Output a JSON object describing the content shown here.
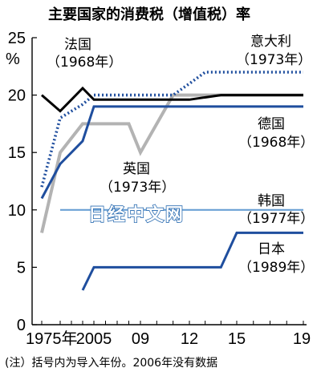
{
  "watermark": "日经中文网",
  "chart_data": {
    "type": "line",
    "title": "主要国家的消费税（增值税）率",
    "ylabel": "%",
    "ylim": [
      0,
      25
    ],
    "yticks": [
      "0",
      "5",
      "10",
      "15",
      "20",
      "25"
    ],
    "x_tick_labels": [
      "1975年",
      "2005",
      "09",
      "12",
      "15",
      "19"
    ],
    "grid": false,
    "note": "(注）括号内为导入年份。2006年没有数据",
    "series": [
      {
        "name": "法国",
        "intro": "（1968年）",
        "color": "#000000",
        "style": "solid",
        "points": [
          [
            1975,
            20
          ],
          [
            2002,
            18.6
          ],
          [
            2004,
            20.6
          ],
          [
            2005,
            19.6
          ],
          [
            2012,
            19.6
          ],
          [
            2014,
            20
          ],
          [
            2019,
            20
          ]
        ]
      },
      {
        "name": "意大利",
        "intro": "（1973年）",
        "color": "#1f4e9e",
        "style": "dotted",
        "points": [
          [
            1975,
            12
          ],
          [
            2002,
            18
          ],
          [
            2004,
            19.2
          ],
          [
            2005,
            20
          ],
          [
            2011,
            20
          ],
          [
            2012,
            21
          ],
          [
            2013,
            22
          ],
          [
            2019,
            22
          ]
        ]
      },
      {
        "name": "德国",
        "intro": "（1968年）",
        "color": "#1f4e9e",
        "style": "solid",
        "points": [
          [
            1975,
            11
          ],
          [
            2002,
            14
          ],
          [
            2004,
            16
          ],
          [
            2005,
            19
          ],
          [
            2019,
            19
          ]
        ]
      },
      {
        "name": "英国",
        "intro": "（1973年）",
        "color": "#b3b3b3",
        "style": "solid",
        "points": [
          [
            1975,
            8
          ],
          [
            2002,
            15
          ],
          [
            2004,
            17.5
          ],
          [
            2005,
            17.5
          ],
          [
            2008,
            17.5
          ],
          [
            2009,
            15
          ],
          [
            2011,
            20
          ],
          [
            2019,
            20
          ]
        ]
      },
      {
        "name": "韩国",
        "intro": "（1977年）",
        "color": "#6aa0d4",
        "style": "solid",
        "points": [
          [
            2002,
            10
          ],
          [
            2019,
            10
          ]
        ]
      },
      {
        "name": "日本",
        "intro": "（1989年）",
        "color": "#1f4e9e",
        "style": "solid",
        "points": [
          [
            2004,
            3
          ],
          [
            2005,
            5
          ],
          [
            2014,
            5
          ],
          [
            2015,
            8
          ],
          [
            2019,
            8
          ]
        ]
      }
    ]
  }
}
